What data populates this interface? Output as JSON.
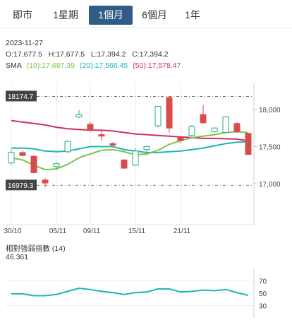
{
  "tabs": [
    {
      "label": "即市",
      "active": false
    },
    {
      "label": "1星期",
      "active": false
    },
    {
      "label": "1個月",
      "active": true
    },
    {
      "label": "6個月",
      "active": false
    },
    {
      "label": "1年",
      "active": false
    }
  ],
  "info": {
    "date": "2023-11-27",
    "ohlc": "O:17,677.5   H:17,677.5   L:17,394.2   C:17,394.2"
  },
  "sma": {
    "label": "SMA",
    "ma10": "(10):17,687.39",
    "ma20": "(20):17,566.45",
    "ma50": "(50):17,578.47"
  },
  "colors": {
    "up": "#ffffff",
    "up_border": "#2aa88e",
    "down": "#d94b4b",
    "ma10": "#7cc34a",
    "ma20": "#1fb4b4",
    "ma50": "#d0306a",
    "rsi": "#1fb4b4",
    "tab_active": "#2f5b86"
  },
  "chart_data": [
    {
      "type": "candlestick",
      "x_labels": [
        "30/10",
        "05/11",
        "09/11",
        "15/11",
        "21/11"
      ],
      "y_ticks": [
        "18,000",
        "17,500",
        "17,000"
      ],
      "ylim": [
        16450,
        18350
      ],
      "hlines": [
        {
          "label": "18174.7",
          "value": 18174.7
        },
        {
          "label": "16979.3",
          "value": 16979.3
        }
      ],
      "candles": [
        {
          "o": 17280,
          "h": 17460,
          "l": 17250,
          "c": 17420
        },
        {
          "o": 17420,
          "h": 17450,
          "l": 17370,
          "c": 17380
        },
        {
          "o": 17370,
          "h": 17390,
          "l": 17140,
          "c": 17150
        },
        {
          "o": 17050,
          "h": 17080,
          "l": 16950,
          "c": 17010
        },
        {
          "o": 17230,
          "h": 17280,
          "l": 17190,
          "c": 17270
        },
        {
          "o": 17430,
          "h": 17580,
          "l": 17410,
          "c": 17570
        },
        {
          "o": 17900,
          "h": 17990,
          "l": 17880,
          "c": 17930
        },
        {
          "o": 17800,
          "h": 17830,
          "l": 17700,
          "c": 17720
        },
        {
          "o": 17660,
          "h": 17720,
          "l": 17580,
          "c": 17640
        },
        {
          "o": 17540,
          "h": 17560,
          "l": 17500,
          "c": 17520
        },
        {
          "o": 17320,
          "h": 17330,
          "l": 17200,
          "c": 17210
        },
        {
          "o": 17250,
          "h": 17480,
          "l": 17240,
          "c": 17440
        },
        {
          "o": 17460,
          "h": 17510,
          "l": 17400,
          "c": 17500
        },
        {
          "o": 17780,
          "h": 18050,
          "l": 17760,
          "c": 18040
        },
        {
          "o": 18160,
          "h": 18180,
          "l": 17690,
          "c": 17750
        },
        {
          "o": 17620,
          "h": 17640,
          "l": 17540,
          "c": 17580
        },
        {
          "o": 17650,
          "h": 17790,
          "l": 17640,
          "c": 17770
        },
        {
          "o": 17930,
          "h": 18060,
          "l": 17810,
          "c": 17820
        },
        {
          "o": 17700,
          "h": 17760,
          "l": 17690,
          "c": 17750
        },
        {
          "o": 17690,
          "h": 17910,
          "l": 17680,
          "c": 17900
        },
        {
          "o": 17810,
          "h": 17830,
          "l": 17680,
          "c": 17700
        },
        {
          "o": 17677.5,
          "h": 17677.5,
          "l": 17394.2,
          "c": 17394.2
        }
      ],
      "series": [
        {
          "name": "(50)",
          "values": [
            17850,
            17830,
            17810,
            17790,
            17760,
            17740,
            17730,
            17720,
            17720,
            17710,
            17690,
            17670,
            17660,
            17650,
            17640,
            17630,
            17620,
            17610,
            17610,
            17605,
            17600,
            17578.47
          ]
        },
        {
          "name": "(20)",
          "values": [
            17480,
            17480,
            17470,
            17440,
            17430,
            17440,
            17470,
            17500,
            17500,
            17500,
            17460,
            17440,
            17420,
            17420,
            17430,
            17440,
            17460,
            17480,
            17510,
            17540,
            17560,
            17566.45
          ]
        },
        {
          "name": "(10)",
          "values": [
            17350,
            17320,
            17250,
            17190,
            17200,
            17260,
            17350,
            17400,
            17450,
            17460,
            17430,
            17390,
            17400,
            17450,
            17530,
            17580,
            17620,
            17640,
            17660,
            17690,
            17700,
            17687.39
          ]
        }
      ]
    },
    {
      "type": "line",
      "title": "相對強弱指數 (14)",
      "value": "46.361",
      "y_ticks": [
        "70",
        "50",
        "30"
      ],
      "ylim": [
        10,
        90
      ],
      "values": [
        49,
        49,
        46,
        46,
        48,
        53,
        58,
        56,
        53,
        51,
        48,
        51,
        52,
        57,
        57,
        52,
        53,
        55,
        54,
        56,
        51,
        46.361
      ]
    }
  ]
}
